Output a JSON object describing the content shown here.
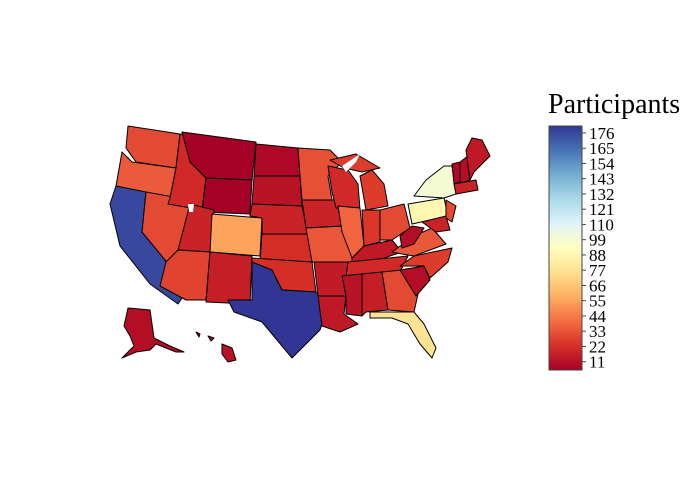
{
  "colorbar": {
    "title": "Participants",
    "ticks": [
      "176",
      "165",
      "154",
      "143",
      "132",
      "121",
      "110",
      "99",
      "88",
      "77",
      "66",
      "55",
      "44",
      "33",
      "22",
      "11"
    ],
    "tick_values": [
      176,
      165,
      154,
      143,
      132,
      121,
      110,
      99,
      88,
      77,
      66,
      55,
      44,
      33,
      22,
      11
    ],
    "range": [
      5,
      181
    ],
    "colorscale": [
      "#a50026",
      "#d73027",
      "#f46d43",
      "#fdae61",
      "#fee090",
      "#ffffbf",
      "#e0f3f8",
      "#abd9e9",
      "#74add1",
      "#4575b4",
      "#313695"
    ]
  },
  "states": [
    {
      "id": "WA",
      "value": 30
    },
    {
      "id": "OR",
      "value": 35
    },
    {
      "id": "CA",
      "value": 176
    },
    {
      "id": "NV",
      "value": 30
    },
    {
      "id": "ID",
      "value": 20
    },
    {
      "id": "MT",
      "value": 5
    },
    {
      "id": "WY",
      "value": 5
    },
    {
      "id": "UT",
      "value": 18
    },
    {
      "id": "AZ",
      "value": 28
    },
    {
      "id": "CO",
      "value": 55
    },
    {
      "id": "NM",
      "value": 16
    },
    {
      "id": "TX",
      "value": 181
    },
    {
      "id": "ND",
      "value": 8
    },
    {
      "id": "SD",
      "value": 12
    },
    {
      "id": "NE",
      "value": 18
    },
    {
      "id": "KS",
      "value": 22
    },
    {
      "id": "OK",
      "value": 22
    },
    {
      "id": "MN",
      "value": 32
    },
    {
      "id": "IA",
      "value": 18
    },
    {
      "id": "MO",
      "value": 34
    },
    {
      "id": "AR",
      "value": 15
    },
    {
      "id": "LA",
      "value": 14
    },
    {
      "id": "WI",
      "value": 20
    },
    {
      "id": "IL",
      "value": 38
    },
    {
      "id": "MI",
      "value": 26
    },
    {
      "id": "IN",
      "value": 24
    },
    {
      "id": "OH",
      "value": 30
    },
    {
      "id": "KY",
      "value": 14
    },
    {
      "id": "TN",
      "value": 20
    },
    {
      "id": "MS",
      "value": 12
    },
    {
      "id": "AL",
      "value": 16
    },
    {
      "id": "GA",
      "value": 30
    },
    {
      "id": "FL",
      "value": 77
    },
    {
      "id": "SC",
      "value": 10
    },
    {
      "id": "NC",
      "value": 26
    },
    {
      "id": "VA",
      "value": 34
    },
    {
      "id": "WV",
      "value": 10
    },
    {
      "id": "PA",
      "value": 88
    },
    {
      "id": "NY",
      "value": 99
    },
    {
      "id": "VT",
      "value": 8
    },
    {
      "id": "NH",
      "value": 10
    },
    {
      "id": "ME",
      "value": 14
    },
    {
      "id": "MA",
      "value": 18
    },
    {
      "id": "NJ",
      "value": 30
    },
    {
      "id": "MD",
      "value": 18
    },
    {
      "id": "AK",
      "value": 10
    },
    {
      "id": "HI",
      "value": 12
    }
  ]
}
